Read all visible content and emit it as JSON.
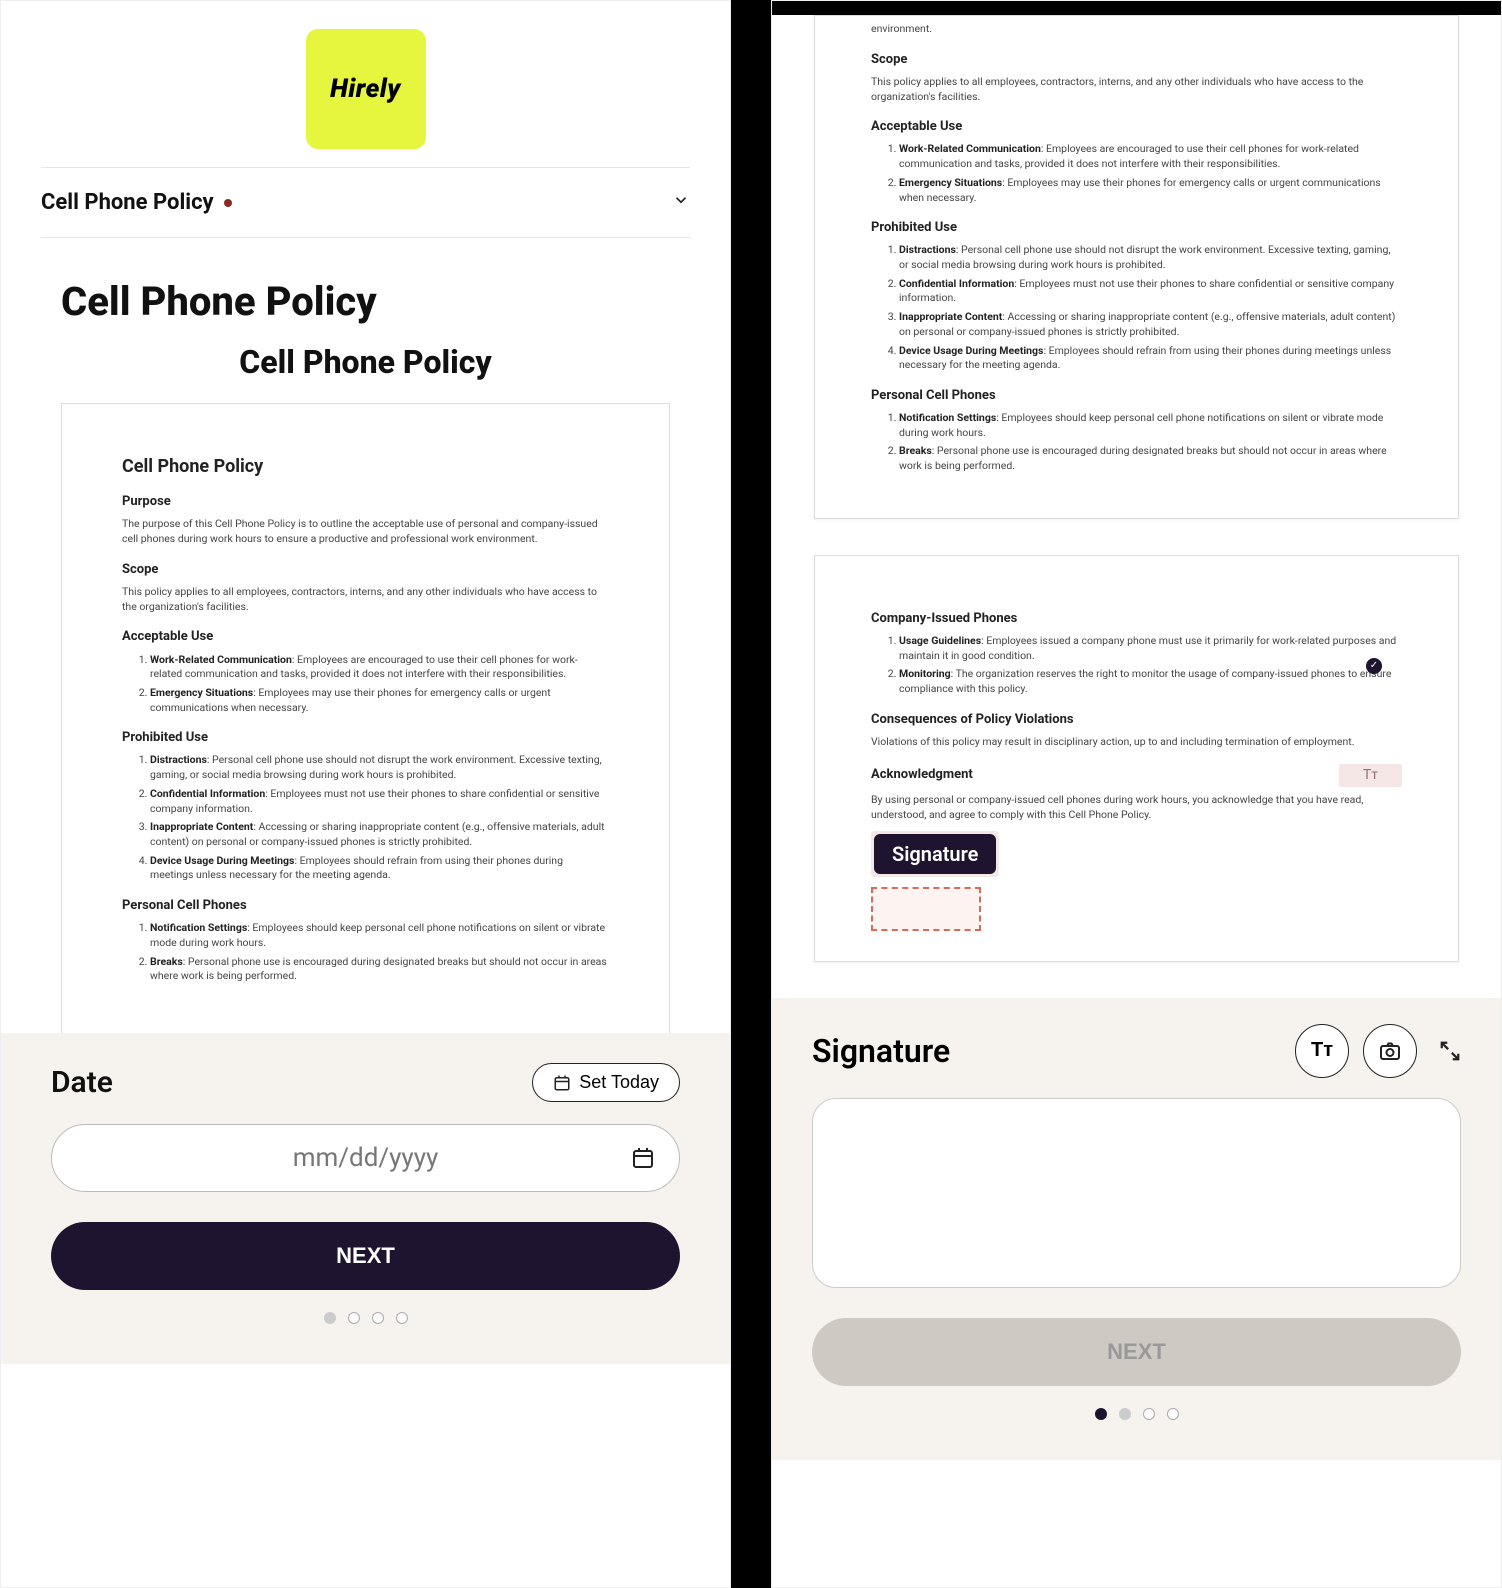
{
  "brand": {
    "name": "Hirely",
    "logo_bg": "#e6f53e"
  },
  "header": {
    "title": "Cell Phone Policy",
    "indicator_color": "#8b2a1f"
  },
  "page_title": "Cell Phone Policy",
  "doc_subtitle": "Cell Phone Policy",
  "policy": {
    "title": "Cell Phone Policy",
    "purpose_h": "Purpose",
    "purpose": "The purpose of this Cell Phone Policy is to outline the acceptable use of personal and company-issued cell phones during work hours to ensure a productive and professional work environment.",
    "scope_h": "Scope",
    "scope": "This policy applies to all employees, contractors, interns, and any other individuals who have access to the organization's facilities.",
    "acceptable_h": "Acceptable Use",
    "acceptable": [
      {
        "b": "Work-Related Communication",
        "t": ": Employees are encouraged to use their cell phones for work-related communication and tasks, provided it does not interfere with their responsibilities."
      },
      {
        "b": "Emergency Situations",
        "t": ": Employees may use their phones for emergency calls or urgent communications when necessary."
      }
    ],
    "prohibited_h": "Prohibited Use",
    "prohibited": [
      {
        "b": "Distractions",
        "t": ": Personal cell phone use should not disrupt the work environment. Excessive texting, gaming, or social media browsing during work hours is prohibited."
      },
      {
        "b": "Confidential Information",
        "t": ": Employees must not use their phones to share confidential or sensitive company information."
      },
      {
        "b": "Inappropriate Content",
        "t": ": Accessing or sharing inappropriate content (e.g., offensive materials, adult content) on personal or company-issued phones is strictly prohibited."
      },
      {
        "b": "Device Usage During Meetings",
        "t": ": Employees should refrain from using their phones during meetings unless necessary for the meeting agenda."
      }
    ],
    "personal_h": "Personal Cell Phones",
    "personal": [
      {
        "b": "Notification Settings",
        "t": ": Employees should keep personal cell phone notifications on silent or vibrate mode during work hours."
      },
      {
        "b": "Breaks",
        "t": ": Personal phone use is encouraged during designated breaks but should not occur in areas where work is being performed."
      }
    ],
    "company_h": "Company-Issued Phones",
    "company": [
      {
        "b": "Usage Guidelines",
        "t": ": Employees issued a company phone must use it primarily for work-related purposes and maintain it in good condition."
      },
      {
        "b": "Monitoring",
        "t": ": The organization reserves the right to monitor the usage of company-issued phones to ensure compliance with this policy."
      }
    ],
    "consequences_h": "Consequences of Policy Violations",
    "consequences": "Violations of this policy may result in disciplinary action, up to and including termination of employment.",
    "ack_h": "Acknowledgment",
    "ack": "By using personal or company-issued cell phones during work hours, you acknowledge that you have read, understood, and agree to comply with this Cell Phone Policy."
  },
  "right_top_tail": "environment.",
  "left_bar": {
    "date_label": "Date",
    "set_today": "Set Today",
    "placeholder": "mm/dd/yyyy",
    "next": "NEXT"
  },
  "signature": {
    "chip_label": "Signature",
    "panel_label": "Signature",
    "next": "NEXT",
    "text_icon": "Tт",
    "field_placeholder": "Tт"
  },
  "colors": {
    "primary_dark": "#1e1430",
    "panel_bg": "#f6f2ee",
    "highlight_bg": "#f6e7e7",
    "dashed_border": "#d86a5a",
    "disabled_bg": "#cfc9c3",
    "disabled_text": "#999999"
  }
}
